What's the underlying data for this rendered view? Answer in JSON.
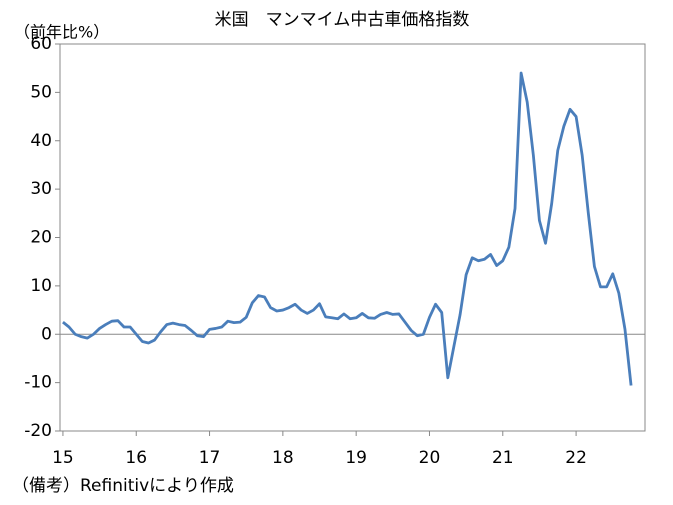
{
  "chart_data": {
    "type": "line",
    "title": "米国　マンマイム中古車価格指数",
    "y_label": "（前年比%）",
    "note": "（備考）Refinitivにより作成",
    "x": [
      15,
      15.083,
      15.167,
      15.25,
      15.333,
      15.417,
      15.5,
      15.583,
      15.667,
      15.75,
      15.833,
      15.917,
      16,
      16.083,
      16.167,
      16.25,
      16.333,
      16.417,
      16.5,
      16.583,
      16.667,
      16.75,
      16.833,
      16.917,
      17,
      17.083,
      17.167,
      17.25,
      17.333,
      17.417,
      17.5,
      17.583,
      17.667,
      17.75,
      17.833,
      17.917,
      18,
      18.083,
      18.167,
      18.25,
      18.333,
      18.417,
      18.5,
      18.583,
      18.667,
      18.75,
      18.833,
      18.917,
      19,
      19.083,
      19.167,
      19.25,
      19.333,
      19.417,
      19.5,
      19.583,
      19.667,
      19.75,
      19.833,
      19.917,
      20,
      20.083,
      20.167,
      20.25,
      20.333,
      20.417,
      20.5,
      20.583,
      20.667,
      20.75,
      20.833,
      20.917,
      21,
      21.083,
      21.167,
      21.25,
      21.333,
      21.417,
      21.5,
      21.583,
      21.667,
      21.75,
      21.833,
      21.917,
      22,
      22.083,
      22.167,
      22.25,
      22.333,
      22.417,
      22.5,
      22.583,
      22.667,
      22.75
    ],
    "series": [
      {
        "color": "#4a7ebb",
        "values": [
          2.5,
          1.5,
          0,
          -0.5,
          -0.8,
          0,
          1.2,
          2,
          2.7,
          2.8,
          1.5,
          1.5,
          0,
          -1.5,
          -1.8,
          -1.2,
          0.5,
          2,
          2.3,
          2,
          1.8,
          0.8,
          -0.3,
          -0.5,
          1,
          1.2,
          1.5,
          2.7,
          2.4,
          2.5,
          3.5,
          6.5,
          8,
          7.7,
          5.5,
          4.8,
          5,
          5.5,
          6.2,
          5,
          4.3,
          5,
          6.3,
          3.6,
          3.4,
          3.2,
          4.2,
          3.2,
          3.4,
          4.3,
          3.4,
          3.3,
          4.1,
          4.5,
          4.1,
          4.2,
          2.5,
          0.8,
          -0.3,
          0,
          3.5,
          6.2,
          4.5,
          -9,
          -2.5,
          4,
          12.3,
          15.8,
          15.2,
          15.5,
          16.5,
          14.2,
          15.2,
          18,
          26,
          54,
          48,
          37,
          23.5,
          18.8,
          27,
          38,
          43,
          46.5,
          45,
          37,
          25,
          14,
          9.8,
          9.8,
          12.5,
          8.5,
          1,
          -10.6
        ]
      }
    ],
    "xlim": [
      14.96,
      22.94
    ],
    "xticks": [
      15,
      16,
      17,
      18,
      19,
      20,
      21,
      22
    ],
    "ylim": [
      -20,
      60
    ],
    "yticks": [
      -20,
      -10,
      0,
      10,
      20,
      30,
      40,
      50,
      60
    ],
    "zero_line": true,
    "grid": false
  }
}
